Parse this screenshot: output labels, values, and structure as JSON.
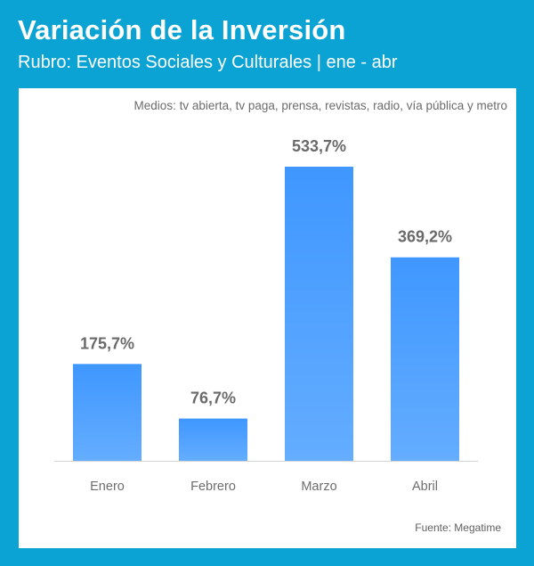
{
  "header": {
    "title": "Variación de la Inversión",
    "subtitle": "Rubro: Eventos Sociales y Culturales | ene - abr"
  },
  "note": "Medios: tv abierta, tv paga, prensa, revistas, radio, vía pública y metro",
  "source": "Fuente: Megatime",
  "colors": {
    "background": "#0aa3d3",
    "bar_top": "#3f97ff",
    "bar_bottom": "#64adff"
  },
  "chart_data": {
    "type": "bar",
    "categories": [
      "Enero",
      "Febrero",
      "Marzo",
      "Abril"
    ],
    "values": [
      175.7,
      76.7,
      533.7,
      369.2
    ],
    "value_labels": [
      "175,7%",
      "76,7%",
      "533,7%",
      "369,2%"
    ],
    "title": "Variación de la Inversión",
    "subtitle": "Rubro: Eventos Sociales y Culturales | ene - abr",
    "xlabel": "",
    "ylabel": "",
    "ylim": [
      0,
      533.7
    ],
    "grid": false,
    "legend": "none"
  }
}
